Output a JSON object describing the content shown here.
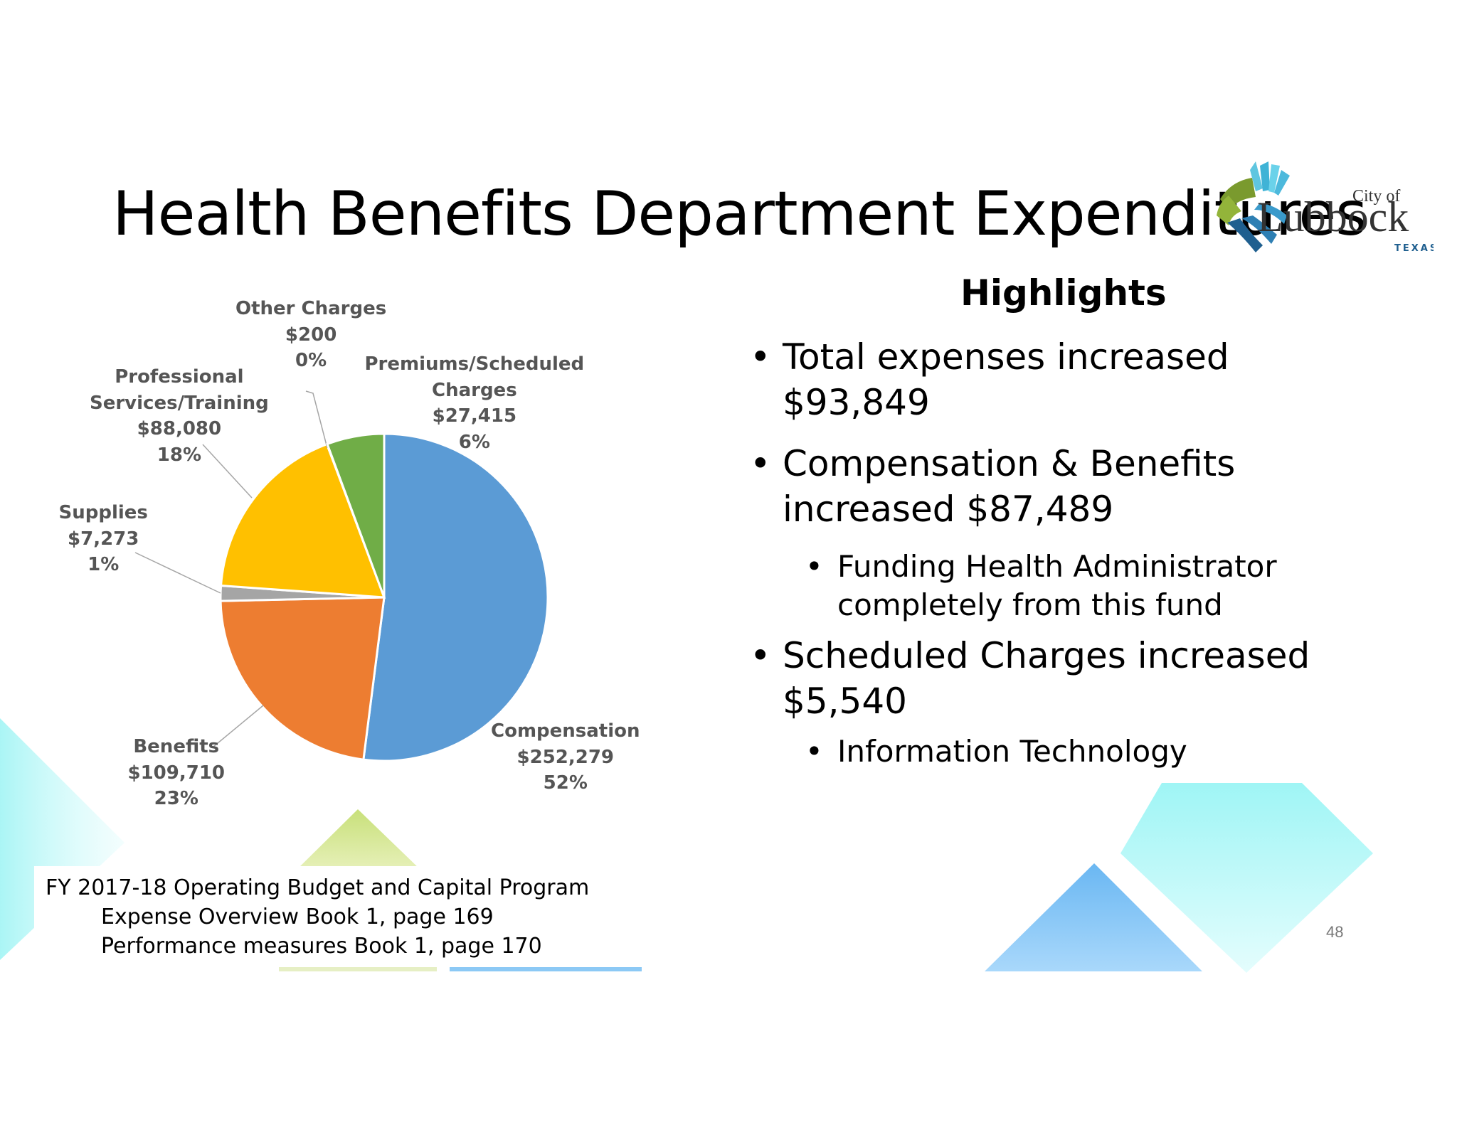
{
  "slide": {
    "title": "Health Benefits Department Expenditures",
    "page_number": "48"
  },
  "logo": {
    "line1": "City of",
    "line2": "Lubbock",
    "line3": "TEXAS"
  },
  "highlights": {
    "title": "Highlights",
    "items": [
      {
        "lines": [
          "Total expenses increased",
          "$93,849"
        ],
        "sub": []
      },
      {
        "lines": [
          "Compensation & Benefits",
          "increased $87,489"
        ],
        "sub": [
          [
            "Funding Health Administrator",
            "completely from this fund"
          ]
        ]
      },
      {
        "lines": [
          "Scheduled Charges increased",
          "$5,540"
        ],
        "sub": [
          [
            "Information Technology"
          ]
        ]
      }
    ]
  },
  "footer": {
    "line1": "FY 2017-18 Operating Budget and Capital Program",
    "line2": "Expense Overview Book 1, page 169",
    "line3": "Performance measures Book 1, page 170"
  },
  "chart_data": {
    "type": "pie",
    "title": "",
    "slices": [
      {
        "label_lines": [
          "Compensation"
        ],
        "value": 252279,
        "value_label": "$252,279",
        "percent_label": "52%",
        "color": "#5B9BD5"
      },
      {
        "label_lines": [
          "Benefits"
        ],
        "value": 109710,
        "value_label": "$109,710",
        "percent_label": "23%",
        "color": "#ED7D31"
      },
      {
        "label_lines": [
          "Supplies"
        ],
        "value": 7273,
        "value_label": "$7,273",
        "percent_label": "1%",
        "color": "#A5A5A5"
      },
      {
        "label_lines": [
          "Professional",
          "Services/Training"
        ],
        "value": 88080,
        "value_label": "$88,080",
        "percent_label": "18%",
        "color": "#FFC000"
      },
      {
        "label_lines": [
          "Other Charges"
        ],
        "value": 200,
        "value_label": "$200",
        "percent_label": "0%",
        "color": "#4472C4"
      },
      {
        "label_lines": [
          "Premiums/Scheduled",
          "Charges"
        ],
        "value": 27415,
        "value_label": "$27,415",
        "percent_label": "6%",
        "color": "#70AD47"
      }
    ]
  }
}
